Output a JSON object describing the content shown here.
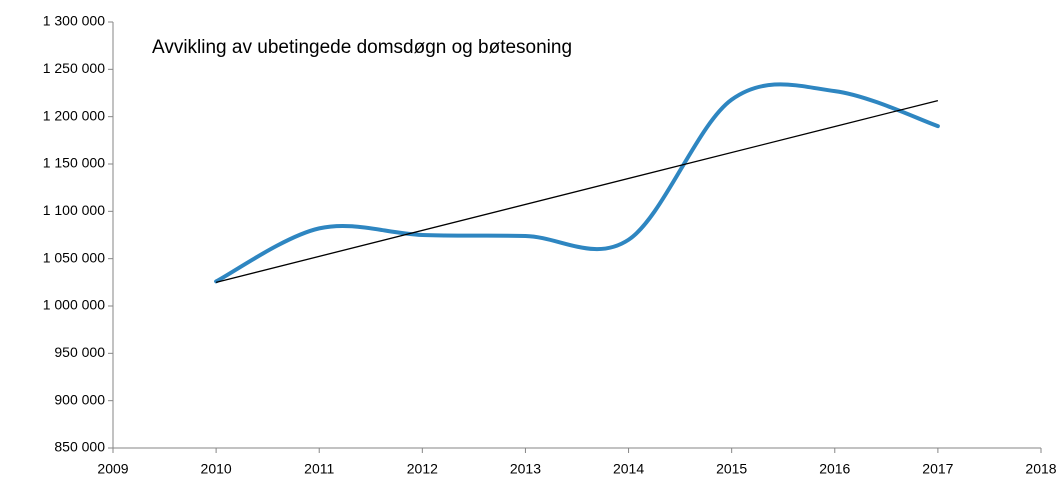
{
  "chart_data": {
    "type": "line",
    "title": "Avvikling av ubetingede domsdøgn og bøtesoning",
    "x": [
      2010,
      2011,
      2012,
      2013,
      2014,
      2015,
      2016,
      2017
    ],
    "series": [
      {
        "color": "#2e86c1",
        "values": [
          1026000,
          1082000,
          1075000,
          1074000,
          1070000,
          1218000,
          1227000,
          1190000
        ]
      }
    ],
    "trendline": {
      "color": "#000000",
      "x": [
        2010,
        2017
      ],
      "values": [
        1025000,
        1217000
      ]
    },
    "smooth": true,
    "xlim": [
      2009,
      2018
    ],
    "xticks": [
      2009,
      2010,
      2011,
      2012,
      2013,
      2014,
      2015,
      2016,
      2017,
      2018
    ],
    "ylim": [
      850000,
      1300000
    ],
    "yticks": [
      {
        "value": 850000,
        "label": "850 000"
      },
      {
        "value": 900000,
        "label": "900 000"
      },
      {
        "value": 950000,
        "label": "950 000"
      },
      {
        "value": 1000000,
        "label": "1 000 000"
      },
      {
        "value": 1050000,
        "label": "1 050 000"
      },
      {
        "value": 1100000,
        "label": "1 100 000"
      },
      {
        "value": 1150000,
        "label": "1 150 000"
      },
      {
        "value": 1200000,
        "label": "1 200 000"
      },
      {
        "value": 1250000,
        "label": "1 250 000"
      },
      {
        "value": 1300000,
        "label": "1 300 000"
      }
    ],
    "grid": false
  }
}
